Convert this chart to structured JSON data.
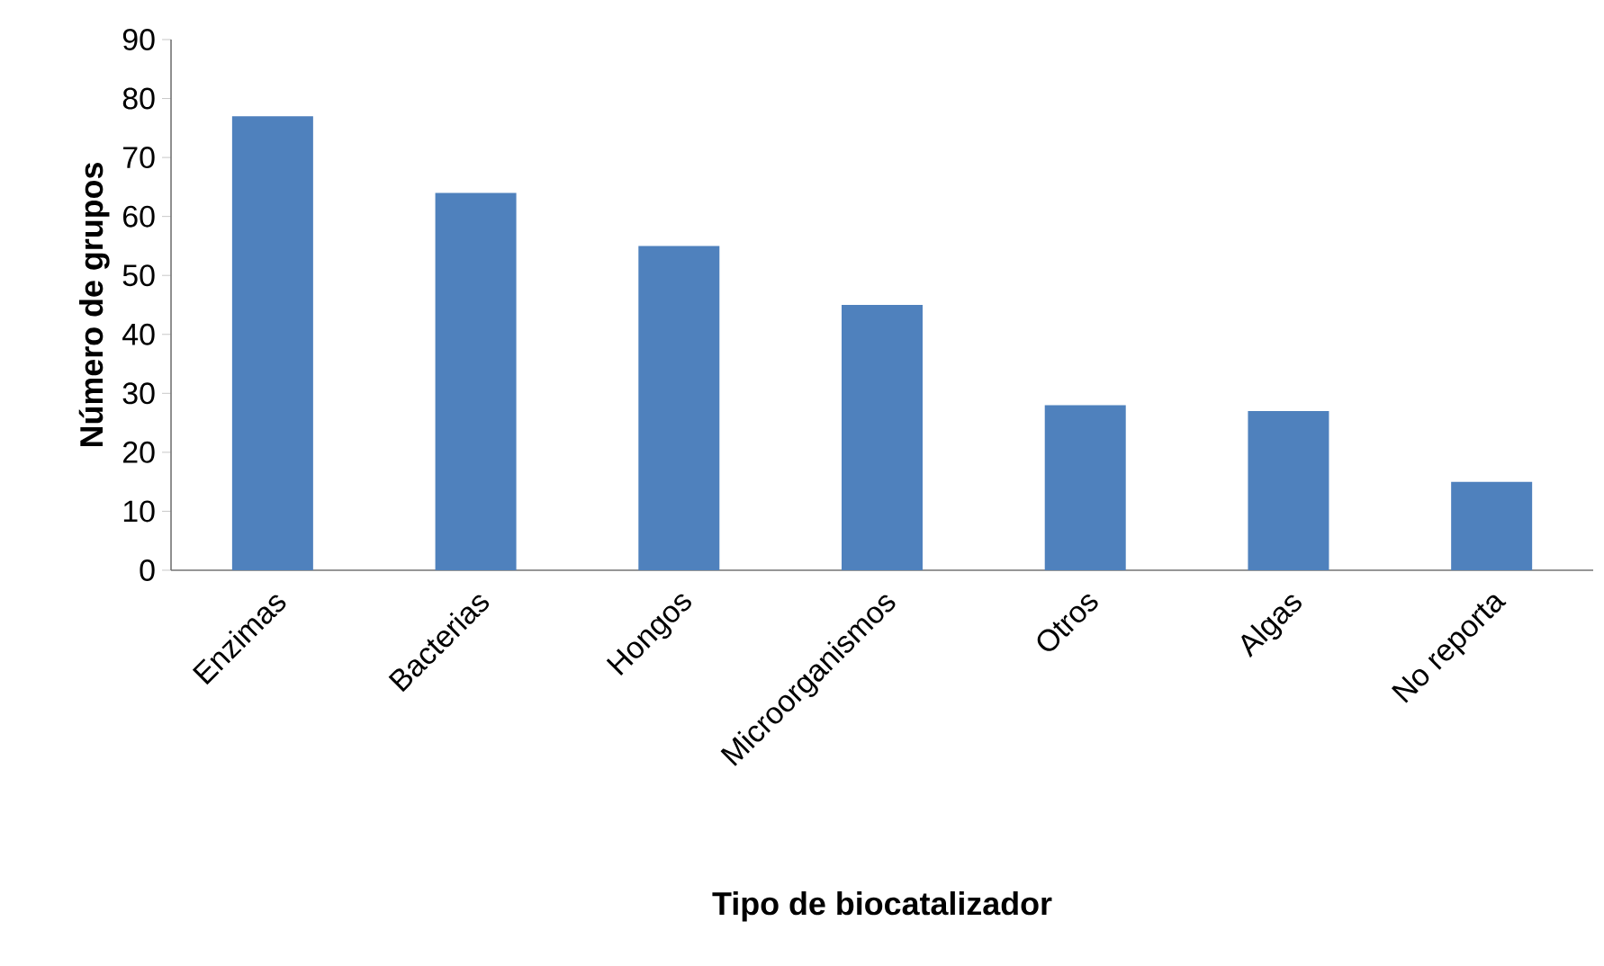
{
  "chart_data": {
    "type": "bar",
    "xlabel": "Tipo de biocatalizador",
    "ylabel": "Número de grupos",
    "categories": [
      "Enzimas",
      "Bacterias",
      "Hongos",
      "Microorganismos",
      "Otros",
      "Algas",
      "No reporta"
    ],
    "values": [
      77,
      64,
      55,
      45,
      28,
      27,
      15
    ],
    "color": "#4f81bd",
    "ylim": [
      0,
      90
    ],
    "yticks": [
      0,
      10,
      20,
      30,
      40,
      50,
      60,
      70,
      80,
      90
    ]
  }
}
